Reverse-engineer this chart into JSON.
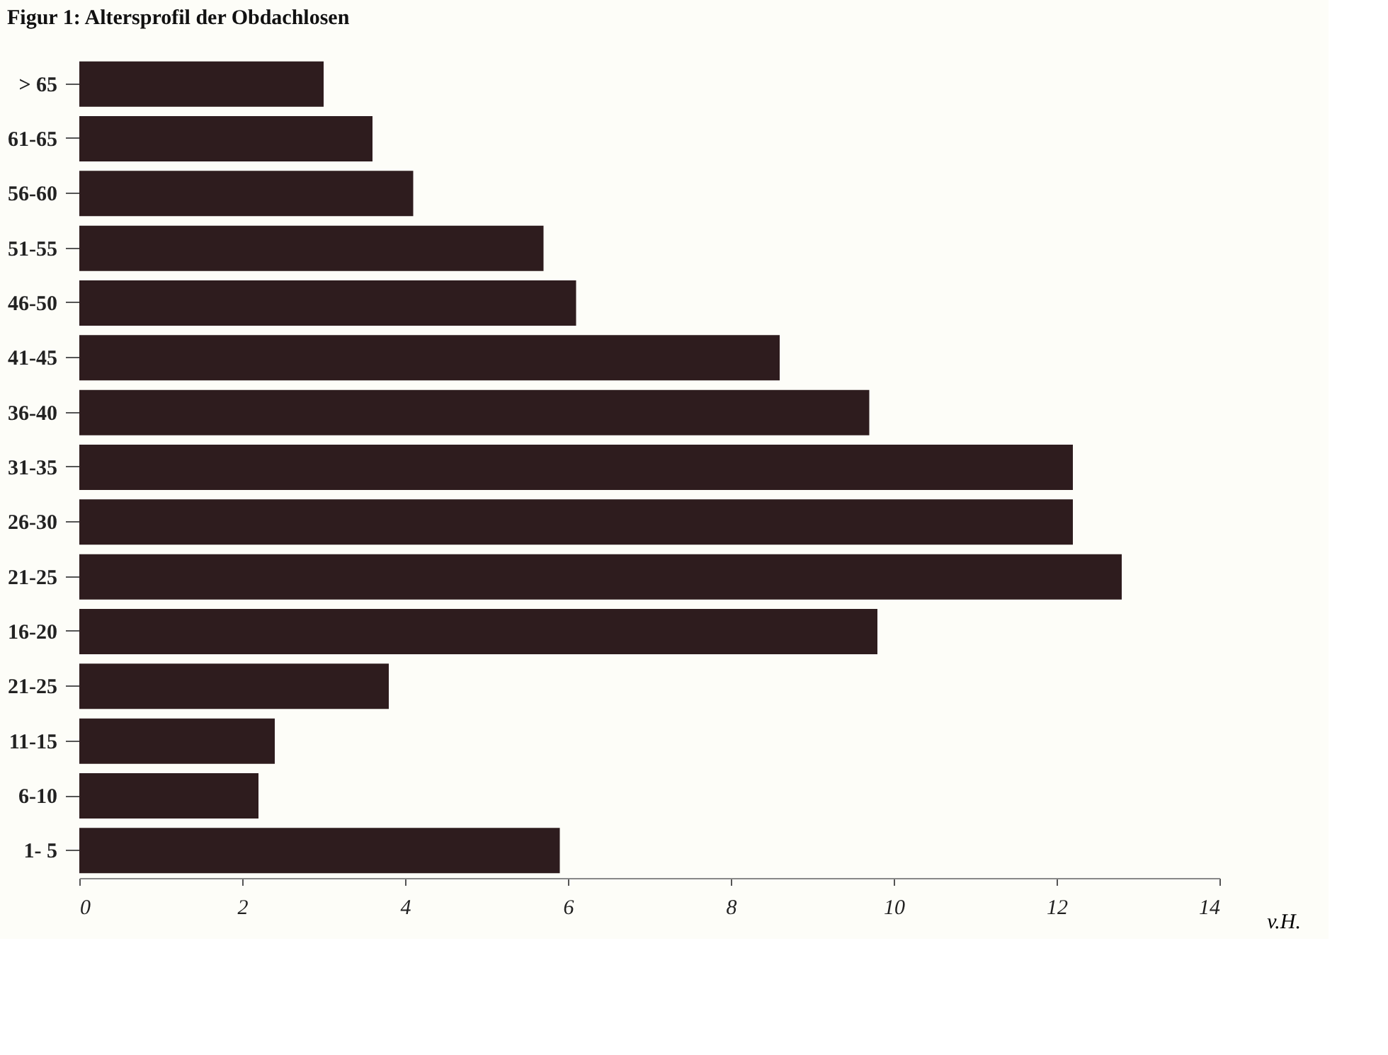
{
  "chart_data": {
    "type": "bar",
    "orientation": "horizontal",
    "title": "Figur 1: Altersprofil der Obdachlosen",
    "xlabel": "v.H.",
    "categories": [
      "> 65",
      "61-65",
      "56-60",
      "51-55",
      "46-50",
      "41-45",
      "36-40",
      "31-35",
      "26-30",
      "21-25",
      "16-20",
      "21-25",
      "11-15",
      "6-10",
      "1- 5"
    ],
    "values": [
      3.0,
      3.6,
      4.1,
      5.7,
      6.1,
      8.6,
      9.7,
      12.2,
      12.2,
      12.8,
      9.8,
      3.8,
      2.4,
      2.2,
      5.9
    ],
    "color": "#2e1c1e",
    "xlim": [
      0,
      14
    ],
    "xticks": [
      0,
      2,
      4,
      6,
      8,
      10,
      12,
      14
    ],
    "grid": false
  }
}
